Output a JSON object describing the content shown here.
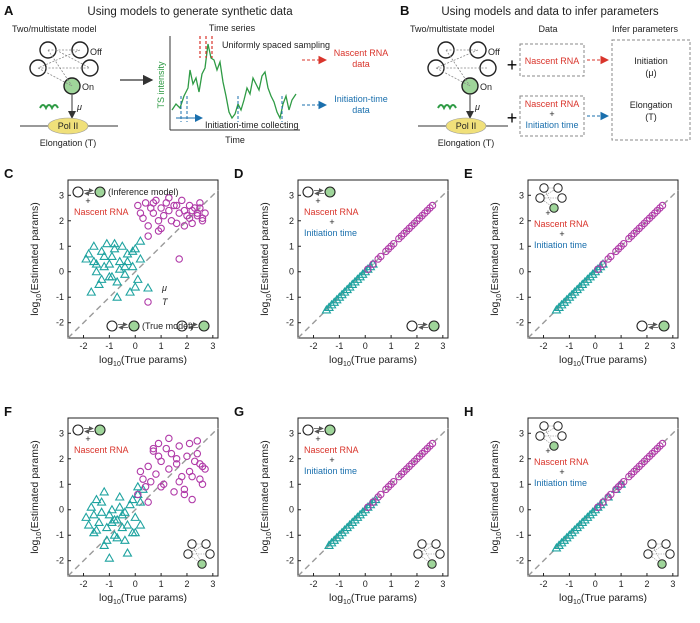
{
  "panel_A": {
    "letter": "A",
    "header": "Using models to generate synthetic data",
    "model_title": "Two/multistate model",
    "state_off": "Off",
    "state_on": "On",
    "rate_mu": "μ",
    "pol": "Pol II",
    "elongation": "Elongation (T)",
    "time_series_title": "Time series",
    "sampling_label": "Uniformly spaced sampling",
    "ts_ylabel": "TS intensity",
    "ts_xlabel": "Time",
    "initiation_collect": "Initiation-time collecting",
    "out_nascent": "Nascent RNA data",
    "out_initiation": "Initiation-time data"
  },
  "panel_B": {
    "letter": "B",
    "header": "Using models and data to infer parameters",
    "col_model": "Two/multistate model",
    "col_data": "Data",
    "col_params": "Infer parameters",
    "state_off": "Off",
    "state_on": "On",
    "rate_mu": "μ",
    "pol": "Pol II",
    "elongation": "Elongation (T)",
    "data1": "Nascent RNA",
    "data2a": "Nascent RNA",
    "data2b": "Initiation time",
    "plus": "+",
    "param1_name": "Initiation",
    "param1_sym": "(μ)",
    "param2_name": "Elongation",
    "param2_sym": "(T)"
  },
  "scatter_common": {
    "xlabel": "log10(True params)",
    "ylabel": "log10(Estimated params)",
    "x_ticks": [
      "-2",
      "-1",
      "0",
      "1",
      "2",
      "3"
    ],
    "y_ticks": [
      "-2",
      "-1",
      "0",
      "1",
      "2",
      "3"
    ],
    "legend_mu": "μ",
    "legend_T": "T",
    "inference_model": "(Inference model)",
    "true_model": "(True model)",
    "plus": "+"
  },
  "colors": {
    "mu": "#1fa3a0",
    "T": "#b03aa8",
    "red_text": "#d9342b",
    "blue_text": "#1a6fad",
    "diag": "#9a9a9a"
  },
  "chart_data": [
    {
      "id": "C",
      "type": "scatter",
      "title": "",
      "xlabel": "log10(True params)",
      "ylabel": "log10(Estimated params)",
      "xlim": [
        -2.6,
        3.2
      ],
      "ylim": [
        -2.6,
        3.6
      ],
      "annotation_red": "Nascent RNA",
      "annotation_blue": "",
      "inference_model": "two-state",
      "true_model": "two-state",
      "series": [
        {
          "name": "μ",
          "marker": "triangle",
          "x": [
            -1.9,
            -1.7,
            -1.6,
            -1.5,
            -1.4,
            -1.3,
            -1.2,
            -1.1,
            -1.0,
            -0.9,
            -0.8,
            -0.7,
            -0.6,
            -0.5,
            -0.4,
            -0.3,
            -0.2,
            -0.1,
            0.0,
            0.1,
            0.2,
            -1.5,
            -1.2,
            -0.9,
            -0.6,
            -0.3,
            0.0,
            -1.8,
            -1.0,
            -0.4,
            0.2,
            -0.7,
            -1.3,
            -0.1,
            -1.6,
            -0.8
          ],
          "y": [
            0.5,
            -0.8,
            1.0,
            0.3,
            -0.5,
            0.8,
            0.2,
            1.1,
            -0.2,
            0.6,
            0.9,
            -0.4,
            0.4,
            1.0,
            -0.1,
            0.7,
            -0.8,
            0.2,
            0.9,
            -0.3,
            0.5,
            0.0,
            0.6,
            -0.2,
            0.1,
            0.4,
            -0.6,
            0.7,
            0.3,
            0.2,
            1.2,
            -1.0,
            -0.3,
            0.8,
            0.4,
            1.1
          ]
        },
        {
          "name": "T",
          "marker": "circle",
          "x": [
            0.1,
            0.3,
            0.4,
            0.5,
            0.6,
            0.7,
            0.8,
            0.9,
            1.0,
            1.1,
            1.2,
            1.3,
            1.4,
            1.5,
            1.6,
            1.7,
            1.8,
            1.9,
            2.0,
            2.1,
            2.2,
            2.3,
            2.4,
            2.5,
            2.6,
            2.7,
            0.5,
            0.9,
            1.3,
            1.7,
            2.1,
            2.5,
            0.2,
            1.0,
            1.6,
            2.2,
            2.6,
            0.7,
            1.9,
            2.4
          ],
          "y": [
            2.6,
            2.1,
            2.7,
            1.8,
            2.5,
            2.3,
            2.8,
            1.6,
            2.5,
            2.2,
            2.7,
            2.4,
            2.0,
            2.6,
            1.9,
            2.3,
            2.8,
            2.4,
            2.2,
            2.6,
            1.9,
            2.5,
            2.3,
            2.7,
            2.1,
            2.3,
            1.4,
            2.0,
            2.9,
            0.5,
            2.1,
            2.5,
            2.3,
            1.7,
            2.6,
            2.4,
            2.0,
            2.7,
            1.8,
            2.2
          ]
        }
      ]
    },
    {
      "id": "D",
      "type": "scatter",
      "title": "",
      "xlabel": "log10(True params)",
      "ylabel": "log10(Estimated params)",
      "xlim": [
        -2.6,
        3.2
      ],
      "ylim": [
        -2.6,
        3.6
      ],
      "annotation_red": "Nascent RNA",
      "annotation_blue": "Initiation time",
      "inference_model": "two-state",
      "true_model": "two-state",
      "series": [
        {
          "name": "μ",
          "marker": "triangle",
          "x": [
            -1.5,
            -1.4,
            -1.3,
            -1.2,
            -1.1,
            -1.0,
            -0.9,
            -0.8,
            -0.7,
            -0.6,
            -0.5,
            -0.4,
            -0.3,
            -0.2,
            -0.1,
            0.0,
            0.1,
            0.2,
            0.3
          ],
          "y": [
            -1.5,
            -1.4,
            -1.3,
            -1.2,
            -1.1,
            -1.0,
            -0.9,
            -0.8,
            -0.7,
            -0.6,
            -0.5,
            -0.4,
            -0.3,
            -0.2,
            -0.1,
            0.0,
            0.1,
            0.2,
            0.3
          ]
        },
        {
          "name": "T",
          "marker": "circle",
          "x": [
            0.1,
            0.3,
            0.5,
            0.6,
            0.8,
            0.9,
            1.0,
            1.1,
            1.3,
            1.4,
            1.5,
            1.6,
            1.7,
            1.8,
            1.9,
            2.0,
            2.1,
            2.2,
            2.3,
            2.4,
            2.5,
            2.6
          ],
          "y": [
            0.1,
            0.3,
            0.5,
            0.6,
            0.8,
            0.9,
            1.0,
            1.1,
            1.3,
            1.4,
            1.5,
            1.6,
            1.7,
            1.8,
            1.9,
            2.0,
            2.1,
            2.2,
            2.3,
            2.4,
            2.5,
            2.6
          ]
        }
      ]
    },
    {
      "id": "E",
      "type": "scatter",
      "title": "",
      "xlabel": "log10(True params)",
      "ylabel": "log10(Estimated params)",
      "xlim": [
        -2.6,
        3.2
      ],
      "ylim": [
        -2.6,
        3.6
      ],
      "annotation_red": "Nascent RNA",
      "annotation_blue": "Initiation time",
      "inference_model": "multistate",
      "true_model": "two-state",
      "series": [
        {
          "name": "μ",
          "marker": "triangle",
          "x": [
            -1.5,
            -1.4,
            -1.3,
            -1.2,
            -1.1,
            -1.0,
            -0.9,
            -0.8,
            -0.7,
            -0.6,
            -0.5,
            -0.4,
            -0.3,
            -0.2,
            -0.1,
            0.0,
            0.1,
            0.2,
            0.3
          ],
          "y": [
            -1.5,
            -1.4,
            -1.3,
            -1.2,
            -1.1,
            -1.0,
            -0.9,
            -0.8,
            -0.7,
            -0.6,
            -0.5,
            -0.4,
            -0.3,
            -0.2,
            -0.1,
            0.0,
            0.1,
            0.2,
            0.3
          ]
        },
        {
          "name": "T",
          "marker": "circle",
          "x": [
            0.1,
            0.3,
            0.5,
            0.6,
            0.8,
            0.9,
            1.0,
            1.1,
            1.3,
            1.4,
            1.5,
            1.6,
            1.7,
            1.8,
            1.9,
            2.0,
            2.1,
            2.2,
            2.3,
            2.4,
            2.5,
            2.6
          ],
          "y": [
            0.1,
            0.3,
            0.5,
            0.6,
            0.8,
            0.9,
            1.0,
            1.1,
            1.3,
            1.4,
            1.5,
            1.6,
            1.7,
            1.8,
            1.9,
            2.0,
            2.1,
            2.2,
            2.3,
            2.4,
            2.5,
            2.6
          ]
        }
      ]
    },
    {
      "id": "F",
      "type": "scatter",
      "title": "",
      "xlabel": "log10(True params)",
      "ylabel": "log10(Estimated params)",
      "xlim": [
        -2.6,
        3.2
      ],
      "ylim": [
        -2.6,
        3.6
      ],
      "annotation_red": "Nascent RNA",
      "annotation_blue": "",
      "inference_model": "two-state",
      "true_model": "multistate",
      "series": [
        {
          "name": "μ",
          "marker": "triangle",
          "x": [
            -1.9,
            -1.7,
            -1.6,
            -1.5,
            -1.4,
            -1.3,
            -1.2,
            -1.1,
            -1.0,
            -0.9,
            -0.8,
            -0.7,
            -0.6,
            -0.5,
            -0.4,
            -0.3,
            -0.2,
            -0.1,
            0.0,
            0.1,
            0.2,
            0.3,
            -1.5,
            -1.2,
            -0.9,
            -0.6,
            -0.3,
            0.0,
            -1.8,
            -1.0,
            -0.4,
            0.2,
            -0.7,
            -1.3,
            -0.1,
            -1.6,
            -0.8,
            -0.5,
            -1.1,
            0.1
          ],
          "y": [
            -0.3,
            0.1,
            -0.9,
            0.4,
            -0.5,
            -0.1,
            0.7,
            -0.7,
            -0.2,
            0.0,
            -1.0,
            -0.4,
            0.5,
            -0.2,
            -1.2,
            -0.6,
            0.2,
            -0.9,
            -0.3,
            0.6,
            -0.6,
            0.8,
            -0.8,
            -1.4,
            -0.5,
            0.1,
            -1.7,
            -0.9,
            -0.6,
            -1.9,
            -0.1,
            0.3,
            -1.1,
            0.3,
            0.4,
            -0.2,
            -0.4,
            -0.7,
            -1.2,
            0.9
          ]
        },
        {
          "name": "T",
          "marker": "circle",
          "x": [
            0.1,
            0.3,
            0.4,
            0.5,
            0.6,
            0.7,
            0.8,
            0.9,
            1.0,
            1.1,
            1.2,
            1.3,
            1.4,
            1.5,
            1.6,
            1.7,
            1.8,
            1.9,
            2.0,
            2.1,
            2.2,
            2.3,
            2.4,
            2.5,
            2.6,
            2.7,
            0.5,
            0.9,
            1.3,
            1.7,
            2.1,
            2.5,
            0.2,
            1.0,
            1.6,
            2.2,
            2.6,
            0.7,
            1.9,
            2.4
          ],
          "y": [
            0.6,
            1.2,
            0.9,
            1.7,
            1.1,
            2.3,
            1.4,
            2.6,
            1.9,
            1.0,
            2.4,
            1.6,
            2.2,
            0.7,
            1.8,
            2.5,
            1.3,
            0.8,
            2.1,
            1.5,
            0.4,
            1.9,
            2.7,
            1.2,
            1.0,
            1.6,
            0.3,
            2.1,
            2.8,
            1.1,
            2.6,
            1.8,
            1.5,
            0.9,
            2.0,
            1.3,
            1.7,
            2.4,
            0.6,
            2.2
          ]
        }
      ]
    },
    {
      "id": "G",
      "type": "scatter",
      "title": "",
      "xlabel": "log10(True params)",
      "ylabel": "log10(Estimated params)",
      "xlim": [
        -2.6,
        3.2
      ],
      "ylim": [
        -2.6,
        3.6
      ],
      "annotation_red": "Nascent RNA",
      "annotation_blue": "Initiation time",
      "inference_model": "two-state",
      "true_model": "multistate",
      "series": [
        {
          "name": "μ",
          "marker": "triangle",
          "x": [
            -1.4,
            -1.3,
            -1.2,
            -1.1,
            -1.0,
            -0.9,
            -0.8,
            -0.7,
            -0.6,
            -0.5,
            -0.4,
            -0.3,
            -0.2,
            -0.1,
            0.0,
            0.1,
            0.2,
            0.3,
            0.4
          ],
          "y": [
            -1.4,
            -1.3,
            -1.2,
            -1.1,
            -1.0,
            -0.9,
            -0.8,
            -0.7,
            -0.6,
            -0.5,
            -0.4,
            -0.3,
            -0.2,
            -0.1,
            0.0,
            0.1,
            0.2,
            0.3,
            0.4
          ]
        },
        {
          "name": "T",
          "marker": "circle",
          "x": [
            0.1,
            0.3,
            0.5,
            0.6,
            0.8,
            0.9,
            1.0,
            1.1,
            1.3,
            1.4,
            1.5,
            1.6,
            1.7,
            1.8,
            1.9,
            2.0,
            2.1,
            2.2,
            2.3,
            2.4,
            2.5,
            2.6
          ],
          "y": [
            0.1,
            0.3,
            0.5,
            0.6,
            0.8,
            0.9,
            1.0,
            1.1,
            1.3,
            1.4,
            1.5,
            1.6,
            1.7,
            1.8,
            1.9,
            2.0,
            2.1,
            2.2,
            2.3,
            2.4,
            2.5,
            2.6
          ]
        }
      ]
    },
    {
      "id": "H",
      "type": "scatter",
      "title": "",
      "xlabel": "log10(True params)",
      "ylabel": "log10(Estimated params)",
      "xlim": [
        -2.6,
        3.2
      ],
      "ylim": [
        -2.6,
        3.6
      ],
      "annotation_red": "Nascent RNA",
      "annotation_blue": "Initiation time",
      "inference_model": "multistate",
      "true_model": "multistate",
      "series": [
        {
          "name": "μ",
          "marker": "triangle",
          "x": [
            -1.5,
            -1.4,
            -1.3,
            -1.2,
            -1.1,
            -1.0,
            -0.9,
            -0.8,
            -0.7,
            -0.6,
            -0.5,
            -0.4,
            -0.3,
            -0.2,
            -0.1,
            0.0,
            0.1,
            0.2,
            0.3,
            0.5,
            0.8,
            1.0
          ],
          "y": [
            -1.5,
            -1.4,
            -1.3,
            -1.2,
            -1.1,
            -1.0,
            -0.9,
            -0.8,
            -0.7,
            -0.6,
            -0.5,
            -0.4,
            -0.3,
            -0.2,
            -0.1,
            0.0,
            0.1,
            0.2,
            0.3,
            0.5,
            0.8,
            1.0
          ]
        },
        {
          "name": "T",
          "marker": "circle",
          "x": [
            0.1,
            0.3,
            0.5,
            0.6,
            0.8,
            0.9,
            1.0,
            1.1,
            1.3,
            1.4,
            1.5,
            1.6,
            1.7,
            1.8,
            1.9,
            2.0,
            2.1,
            2.2,
            2.3,
            2.4,
            2.5,
            2.6
          ],
          "y": [
            0.1,
            0.3,
            0.5,
            0.6,
            0.8,
            0.9,
            1.0,
            1.1,
            1.3,
            1.4,
            1.5,
            1.6,
            1.7,
            1.8,
            1.9,
            2.0,
            2.1,
            2.2,
            2.3,
            2.4,
            2.5,
            2.6
          ]
        }
      ]
    }
  ]
}
